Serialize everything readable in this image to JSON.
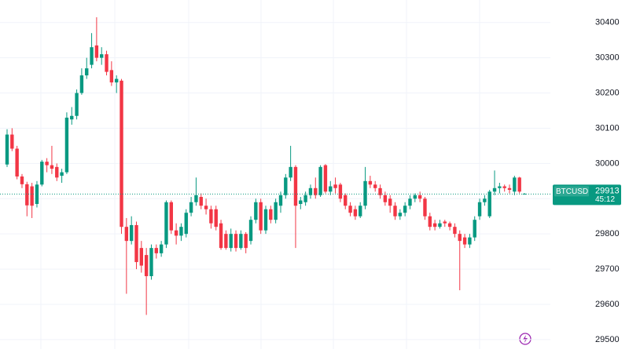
{
  "chart_data": {
    "type": "candlestick",
    "up_color": "#089981",
    "down_color": "#f23645",
    "ylim": [
      29473,
      30464
    ],
    "yticks": [
      29500,
      29600,
      29700,
      29800,
      29900,
      30000,
      30100,
      30200,
      30300,
      30400
    ],
    "grid": true,
    "open": [
      29997,
      30082,
      30042,
      29963,
      29941,
      29935,
      29885,
      29940,
      30005,
      29995,
      29990,
      29965,
      29975,
      30125,
      30135,
      30200,
      30250,
      30280,
      30335,
      30300,
      30310,
      30265,
      30230,
      30235,
      29820,
      29780,
      29825,
      29760,
      29740,
      29680,
      29760,
      29745,
      29770,
      29890,
      29810,
      29795,
      29800,
      29860,
      29890,
      29905,
      29880,
      29870,
      29870,
      29830,
      29800,
      29760,
      29800,
      29760,
      29800,
      29780,
      29840,
      29890,
      29810,
      29870,
      29840,
      29880,
      29910,
      29960,
      29990,
      29885,
      29890,
      29910,
      29930,
      29910,
      29995,
      29920,
      29940,
      29940,
      29910,
      29880,
      29870,
      29850,
      29880,
      29950,
      29940,
      29930,
      29910,
      29900,
      29880,
      29850,
      29860,
      29880,
      29900,
      29910,
      29900,
      29850,
      29830,
      29820,
      29835,
      29830,
      29820,
      29800,
      29790,
      29770,
      29790,
      29850,
      29890,
      29850,
      29920,
      29930,
      29935,
      29930,
      29920,
      29960,
      29913
    ],
    "high": [
      30097,
      30100,
      30050,
      29970,
      29948,
      29945,
      29950,
      30010,
      30015,
      30050,
      30000,
      29985,
      30145,
      30160,
      30210,
      30270,
      30300,
      30370,
      30415,
      30330,
      30320,
      30290,
      30250,
      30240,
      29845,
      29850,
      29835,
      29780,
      29760,
      29770,
      29770,
      29780,
      29895,
      29895,
      29830,
      29830,
      29870,
      29905,
      29960,
      29915,
      29900,
      29880,
      29880,
      29840,
      29810,
      29815,
      29810,
      29810,
      29805,
      29850,
      29900,
      29900,
      29880,
      29880,
      29900,
      29920,
      29970,
      30050,
      29995,
      29905,
      29920,
      29940,
      29960,
      29995,
      29998,
      29950,
      29960,
      29945,
      29915,
      29890,
      29880,
      29890,
      29990,
      29965,
      29950,
      29940,
      29920,
      29910,
      29890,
      29870,
      29890,
      29910,
      29915,
      29920,
      29905,
      29860,
      29840,
      29840,
      29840,
      29835,
      29830,
      29810,
      29800,
      29800,
      29850,
      29900,
      29910,
      29925,
      29980,
      29945,
      29940,
      29940,
      29965,
      29962,
      29916
    ],
    "low": [
      29990,
      30035,
      29955,
      29930,
      29850,
      29845,
      29875,
      29935,
      29975,
      29970,
      29950,
      29945,
      29970,
      30110,
      30125,
      30195,
      30240,
      30270,
      30290,
      30280,
      30250,
      30220,
      30200,
      29800,
      29630,
      29770,
      29700,
      29690,
      29570,
      29670,
      29730,
      29735,
      29760,
      29800,
      29770,
      29780,
      29790,
      29850,
      29880,
      29870,
      29855,
      29815,
      29810,
      29755,
      29755,
      29750,
      29750,
      29755,
      29745,
      29770,
      29830,
      29800,
      29800,
      29830,
      29830,
      29860,
      29900,
      29950,
      29760,
      29870,
      29880,
      29900,
      29900,
      29905,
      29915,
      29910,
      29915,
      29890,
      29870,
      29850,
      29840,
      29845,
      29870,
      29930,
      29920,
      29900,
      29880,
      29860,
      29840,
      29840,
      29850,
      29870,
      29890,
      29890,
      29840,
      29810,
      29810,
      29815,
      29820,
      29810,
      29790,
      29640,
      29760,
      29760,
      29780,
      29840,
      29880,
      29845,
      29910,
      29915,
      29920,
      29915,
      29910,
      29915,
      29912
    ],
    "close": [
      30082,
      30042,
      29963,
      29941,
      29881,
      29880,
      29940,
      30005,
      29995,
      29985,
      29960,
      29975,
      30130,
      30135,
      30200,
      30250,
      30270,
      30330,
      30300,
      30310,
      30260,
      30230,
      30240,
      29820,
      29780,
      29825,
      29720,
      29710,
      29680,
      29760,
      29745,
      29770,
      29890,
      29810,
      29795,
      29820,
      29860,
      29890,
      29910,
      29880,
      29870,
      29830,
      29820,
      29760,
      29760,
      29800,
      29760,
      29800,
      29760,
      29840,
      29890,
      29810,
      29870,
      29840,
      29890,
      29910,
      29960,
      29990,
      29880,
      29895,
      29910,
      29930,
      29910,
      29990,
      29920,
      29935,
      29930,
      29900,
      29880,
      29860,
      29850,
      29880,
      29950,
      29940,
      29930,
      29910,
      29890,
      29880,
      29850,
      29860,
      29880,
      29900,
      29910,
      29900,
      29850,
      29820,
      29820,
      29830,
      29830,
      29820,
      29800,
      29780,
      29770,
      29790,
      29840,
      29890,
      29900,
      29920,
      29930,
      29935,
      29930,
      29925,
      29960,
      29920,
      29914
    ],
    "last_price": {
      "symbol": "BTCUSD",
      "value": 29913,
      "countdown": "45:12"
    }
  }
}
